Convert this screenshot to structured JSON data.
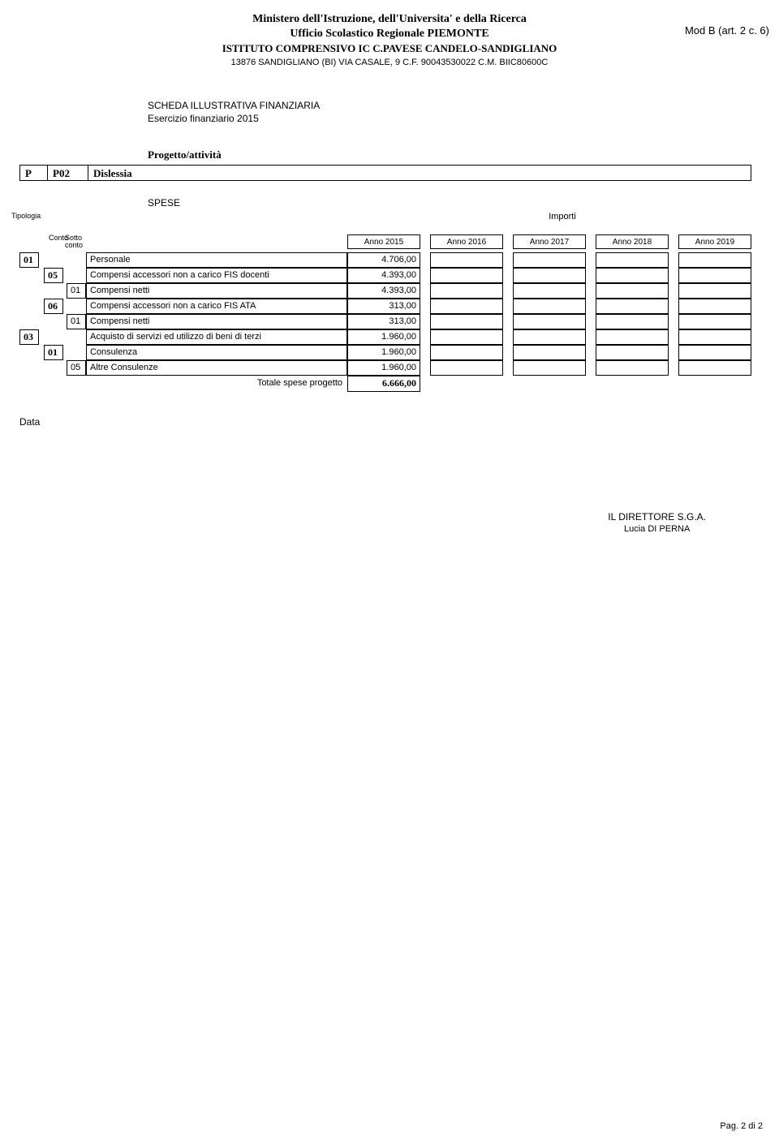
{
  "header": {
    "ministry": "Ministero dell'Istruzione, dell'Universita' e della Ricerca",
    "office": "Ufficio Scolastico Regionale PIEMONTE",
    "institute": "ISTITUTO COMPRENSIVO IC C.PAVESE CANDELO-SANDIGLIANO",
    "address": "13876 SANDIGLIANO (BI) VIA CASALE, 9 C.F. 90043530022 C.M. BIIC80600C",
    "mod_b": "Mod B (art. 2 c. 6)"
  },
  "section": {
    "title": "SCHEDA ILLUSTRATIVA FINANZIARIA",
    "subtitle": "Esercizio finanziario 2015"
  },
  "project": {
    "label": "Progetto/attività",
    "code_p": "P",
    "code_num": "P02",
    "name": "Dislessia"
  },
  "spese": {
    "label": "SPESE",
    "tipologia_label": "Tipologia",
    "conto_label": "Conto",
    "sottoconto_label": "Sotto conto",
    "importi_label": "Importi",
    "years": [
      "Anno 2015",
      "Anno 2016",
      "Anno 2017",
      "Anno 2018",
      "Anno 2019"
    ],
    "rows": [
      {
        "tip": "01",
        "conto": "",
        "sub": "",
        "desc": "Personale",
        "v2015": "4.706,00"
      },
      {
        "tip": "",
        "conto": "05",
        "sub": "",
        "desc": "Compensi accessori non a carico FIS docenti",
        "v2015": "4.393,00"
      },
      {
        "tip": "",
        "conto": "",
        "sub": "01",
        "desc": "Compensi netti",
        "v2015": "4.393,00"
      },
      {
        "tip": "",
        "conto": "06",
        "sub": "",
        "desc": "Compensi accessori non a carico FIS ATA",
        "v2015": "313,00"
      },
      {
        "tip": "",
        "conto": "",
        "sub": "01",
        "desc": "Compensi netti",
        "v2015": "313,00"
      },
      {
        "tip": "03",
        "conto": "",
        "sub": "",
        "desc": "Acquisto di servizi ed utilizzo di beni di terzi",
        "v2015": "1.960,00"
      },
      {
        "tip": "",
        "conto": "01",
        "sub": "",
        "desc": "Consulenza",
        "v2015": "1.960,00"
      },
      {
        "tip": "",
        "conto": "",
        "sub": "05",
        "desc": "Altre Consulenze",
        "v2015": "1.960,00"
      }
    ],
    "total_label": "Totale spese progetto",
    "total_value": "6.666,00"
  },
  "data_label": "Data",
  "signature": {
    "title": "IL DIRETTORE S.G.A.",
    "name": "Lucia DI PERNA"
  },
  "footer": "Pag. 2 di 2"
}
